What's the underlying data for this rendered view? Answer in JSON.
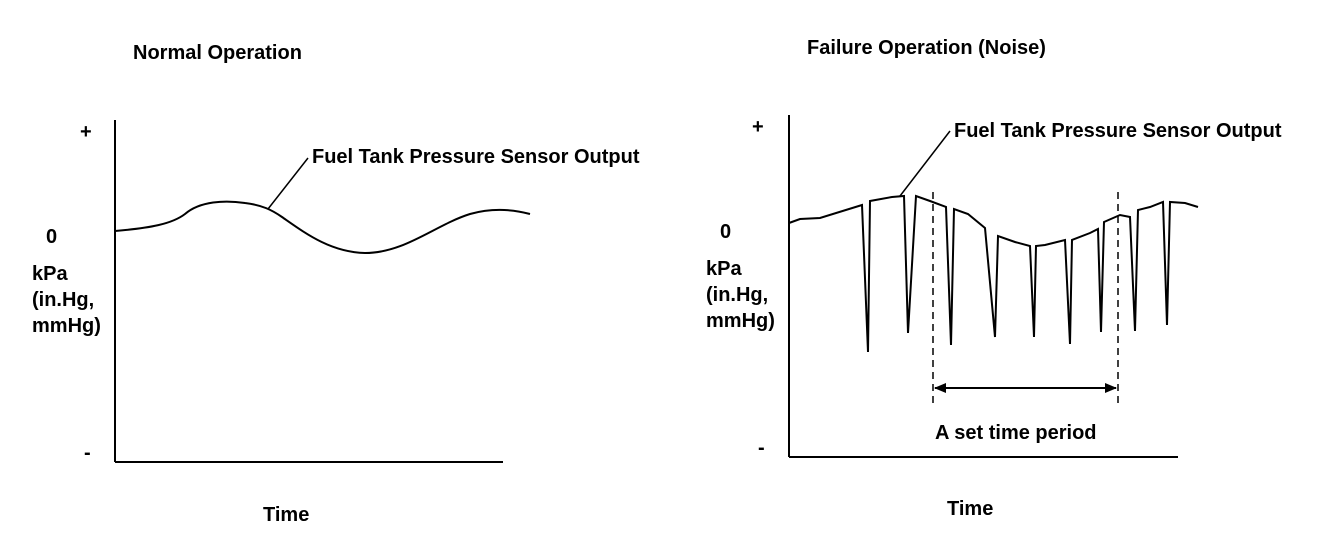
{
  "left_panel": {
    "title": "Normal Operation",
    "y_plus": "+",
    "y_zero": "0",
    "y_unit_lines": [
      "kPa",
      "(in.Hg,",
      "mmHg)"
    ],
    "y_minus": "-",
    "x_label": "Time",
    "annotation": "Fuel Tank Pressure Sensor Output"
  },
  "right_panel": {
    "title": "Failure Operation (Noise)",
    "y_plus": "+",
    "y_zero": "0",
    "y_unit_lines": [
      "kPa",
      "(in.Hg,",
      "mmHg)"
    ],
    "y_minus": "-",
    "x_label": "Time",
    "annotation": "Fuel Tank Pressure Sensor Output",
    "period_label": "A set time period"
  },
  "colors": {
    "line": "#000000",
    "background": "#ffffff"
  }
}
